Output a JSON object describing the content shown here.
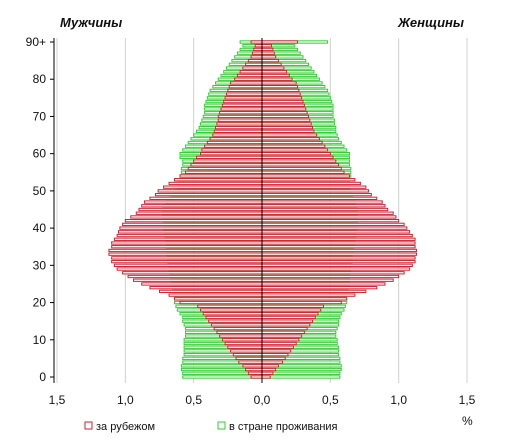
{
  "chart_data": {
    "type": "bar",
    "orientation": "horizontal",
    "title": "",
    "left_title": "Мужчины",
    "right_title": "Женщины",
    "xlabel": "%",
    "ylabel": "",
    "xlim": [
      -1.5,
      1.5
    ],
    "ylim": [
      0,
      90
    ],
    "x_tick_values": [
      -1.5,
      -1.0,
      -0.5,
      0,
      0.5,
      1.0,
      1.5
    ],
    "x_tick_labels": [
      "1,5",
      "1,0",
      "0,5",
      "0,0",
      "0,5",
      "1,0",
      "1,5"
    ],
    "y_tick_values": [
      0,
      10,
      20,
      30,
      40,
      50,
      60,
      70,
      80,
      90
    ],
    "y_tick_labels": [
      "0",
      "10",
      "20",
      "30",
      "40",
      "50",
      "60",
      "70",
      "80",
      "90+"
    ],
    "grid": "vertical",
    "legend_position": "bottom",
    "y_ages": [
      0,
      1,
      2,
      3,
      4,
      5,
      6,
      7,
      8,
      9,
      10,
      11,
      12,
      13,
      14,
      15,
      16,
      17,
      18,
      19,
      20,
      21,
      22,
      23,
      24,
      25,
      26,
      27,
      28,
      29,
      30,
      31,
      32,
      33,
      34,
      35,
      36,
      37,
      38,
      39,
      40,
      41,
      42,
      43,
      44,
      45,
      46,
      47,
      48,
      49,
      50,
      51,
      52,
      53,
      54,
      55,
      56,
      57,
      58,
      59,
      60,
      61,
      62,
      63,
      64,
      65,
      66,
      67,
      68,
      69,
      70,
      71,
      72,
      73,
      74,
      75,
      76,
      77,
      78,
      79,
      80,
      81,
      82,
      83,
      84,
      85,
      86,
      87,
      88,
      89,
      90
    ],
    "series": [
      {
        "name": "за рубежом",
        "color": "#cc2233",
        "male": [
          0.08,
          0.1,
          0.12,
          0.14,
          0.17,
          0.19,
          0.21,
          0.23,
          0.25,
          0.27,
          0.29,
          0.31,
          0.33,
          0.35,
          0.37,
          0.39,
          0.41,
          0.43,
          0.45,
          0.47,
          0.6,
          0.64,
          0.68,
          0.75,
          0.82,
          0.88,
          0.94,
          0.98,
          1.02,
          1.06,
          1.08,
          1.1,
          1.1,
          1.12,
          1.12,
          1.1,
          1.1,
          1.08,
          1.06,
          1.05,
          1.04,
          1.02,
          1.0,
          0.96,
          0.92,
          0.9,
          0.88,
          0.86,
          0.82,
          0.78,
          0.76,
          0.72,
          0.68,
          0.64,
          0.6,
          0.56,
          0.54,
          0.52,
          0.5,
          0.48,
          0.45,
          0.44,
          0.42,
          0.4,
          0.38,
          0.36,
          0.35,
          0.34,
          0.33,
          0.32,
          0.32,
          0.31,
          0.3,
          0.29,
          0.28,
          0.27,
          0.26,
          0.25,
          0.24,
          0.23,
          0.2,
          0.18,
          0.16,
          0.14,
          0.12,
          0.1,
          0.08,
          0.07,
          0.06,
          0.05,
          0.08
        ],
        "female": [
          0.06,
          0.08,
          0.1,
          0.12,
          0.15,
          0.17,
          0.19,
          0.21,
          0.23,
          0.25,
          0.27,
          0.29,
          0.31,
          0.33,
          0.35,
          0.37,
          0.39,
          0.41,
          0.43,
          0.45,
          0.58,
          0.62,
          0.68,
          0.76,
          0.84,
          0.9,
          0.96,
          1.0,
          1.04,
          1.08,
          1.1,
          1.12,
          1.12,
          1.13,
          1.13,
          1.12,
          1.12,
          1.12,
          1.1,
          1.08,
          1.06,
          1.04,
          1.0,
          0.98,
          0.96,
          0.92,
          0.9,
          0.88,
          0.84,
          0.8,
          0.78,
          0.76,
          0.72,
          0.68,
          0.64,
          0.6,
          0.58,
          0.56,
          0.54,
          0.52,
          0.5,
          0.48,
          0.46,
          0.44,
          0.42,
          0.4,
          0.38,
          0.37,
          0.36,
          0.35,
          0.34,
          0.33,
          0.32,
          0.31,
          0.3,
          0.29,
          0.28,
          0.27,
          0.26,
          0.25,
          0.22,
          0.2,
          0.18,
          0.16,
          0.14,
          0.12,
          0.1,
          0.09,
          0.08,
          0.07,
          0.26
        ]
      },
      {
        "name": "в стране проживания",
        "color": "#33cc33",
        "male": [
          0.58,
          0.58,
          0.59,
          0.59,
          0.58,
          0.58,
          0.57,
          0.57,
          0.57,
          0.57,
          0.57,
          0.56,
          0.56,
          0.56,
          0.57,
          0.58,
          0.58,
          0.6,
          0.62,
          0.63,
          0.64,
          0.64,
          0.64,
          0.65,
          0.66,
          0.66,
          0.67,
          0.67,
          0.68,
          0.68,
          0.69,
          0.69,
          0.69,
          0.7,
          0.7,
          0.7,
          0.7,
          0.71,
          0.71,
          0.72,
          0.72,
          0.72,
          0.72,
          0.73,
          0.73,
          0.73,
          0.72,
          0.7,
          0.68,
          0.66,
          0.64,
          0.62,
          0.62,
          0.61,
          0.6,
          0.59,
          0.59,
          0.58,
          0.58,
          0.6,
          0.6,
          0.58,
          0.56,
          0.54,
          0.52,
          0.5,
          0.48,
          0.46,
          0.45,
          0.44,
          0.43,
          0.42,
          0.42,
          0.42,
          0.41,
          0.4,
          0.39,
          0.38,
          0.36,
          0.34,
          0.32,
          0.3,
          0.28,
          0.26,
          0.24,
          0.22,
          0.2,
          0.18,
          0.16,
          0.14,
          0.16
        ],
        "female": [
          0.57,
          0.57,
          0.58,
          0.58,
          0.57,
          0.57,
          0.56,
          0.56,
          0.56,
          0.55,
          0.55,
          0.54,
          0.54,
          0.55,
          0.56,
          0.56,
          0.57,
          0.58,
          0.6,
          0.61,
          0.62,
          0.62,
          0.62,
          0.63,
          0.63,
          0.64,
          0.64,
          0.64,
          0.65,
          0.65,
          0.65,
          0.66,
          0.66,
          0.66,
          0.67,
          0.67,
          0.68,
          0.68,
          0.69,
          0.69,
          0.7,
          0.7,
          0.7,
          0.7,
          0.7,
          0.7,
          0.69,
          0.68,
          0.67,
          0.66,
          0.65,
          0.64,
          0.64,
          0.64,
          0.65,
          0.65,
          0.65,
          0.64,
          0.64,
          0.64,
          0.64,
          0.62,
          0.6,
          0.58,
          0.56,
          0.55,
          0.54,
          0.54,
          0.53,
          0.53,
          0.52,
          0.52,
          0.52,
          0.52,
          0.51,
          0.5,
          0.49,
          0.48,
          0.46,
          0.44,
          0.42,
          0.4,
          0.38,
          0.36,
          0.34,
          0.32,
          0.3,
          0.28,
          0.26,
          0.24,
          0.48
        ]
      }
    ]
  }
}
